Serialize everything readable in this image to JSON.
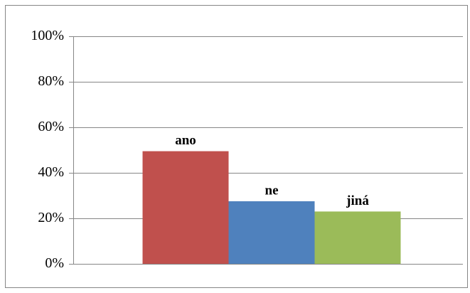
{
  "chart_data": {
    "type": "bar",
    "series": [
      {
        "name": "ano",
        "color": "#c0504d",
        "values": [
          49.5
        ]
      },
      {
        "name": "ne",
        "color": "#4f81bd",
        "values": [
          27.5
        ]
      },
      {
        "name": "jiná",
        "color": "#9bbb59",
        "values": [
          23
        ]
      }
    ],
    "ylim": [
      0,
      100
    ],
    "yticks": [
      {
        "value": 0,
        "label": "0%"
      },
      {
        "value": 20,
        "label": "20%"
      },
      {
        "value": 40,
        "label": "40%"
      },
      {
        "value": 60,
        "label": "60%"
      },
      {
        "value": 80,
        "label": "80%"
      },
      {
        "value": 100,
        "label": "100%"
      }
    ],
    "grid": true
  }
}
